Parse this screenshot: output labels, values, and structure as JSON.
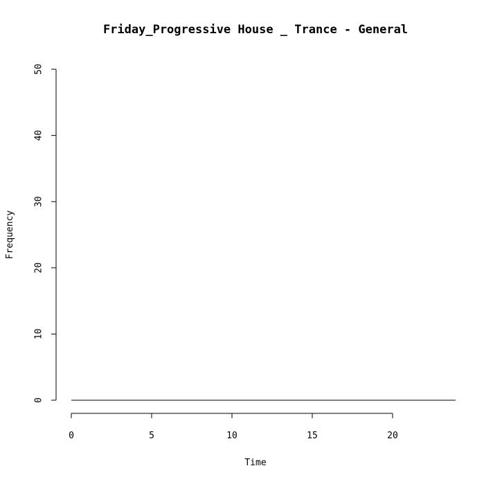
{
  "chart_data": {
    "type": "line",
    "title": "Friday_Progressive House _ Trance - General",
    "xlabel": "Time",
    "ylabel": "Frequency",
    "xlim": [
      0,
      24
    ],
    "ylim": [
      0,
      50
    ],
    "x_ticks": [
      0,
      5,
      10,
      15,
      20
    ],
    "y_ticks": [
      0,
      10,
      20,
      30,
      40,
      50
    ],
    "x_tick_labels": [
      "0",
      "5",
      "10",
      "15",
      "20"
    ],
    "y_tick_labels": [
      "0",
      "10",
      "20",
      "30",
      "40",
      "50"
    ],
    "grid": false,
    "series": [
      {
        "x": [
          0,
          1,
          2,
          3,
          4,
          5,
          6,
          7,
          8,
          9,
          10,
          11,
          12,
          13,
          14,
          15,
          16,
          17,
          18,
          19,
          20,
          21,
          22,
          23,
          24
        ],
        "values": [
          0,
          0,
          0,
          0,
          0,
          0,
          0,
          0,
          0,
          0,
          0,
          0,
          0,
          0,
          0,
          0,
          0,
          0,
          0,
          0,
          0,
          0,
          0,
          0,
          0
        ],
        "color": "#000000"
      }
    ]
  }
}
